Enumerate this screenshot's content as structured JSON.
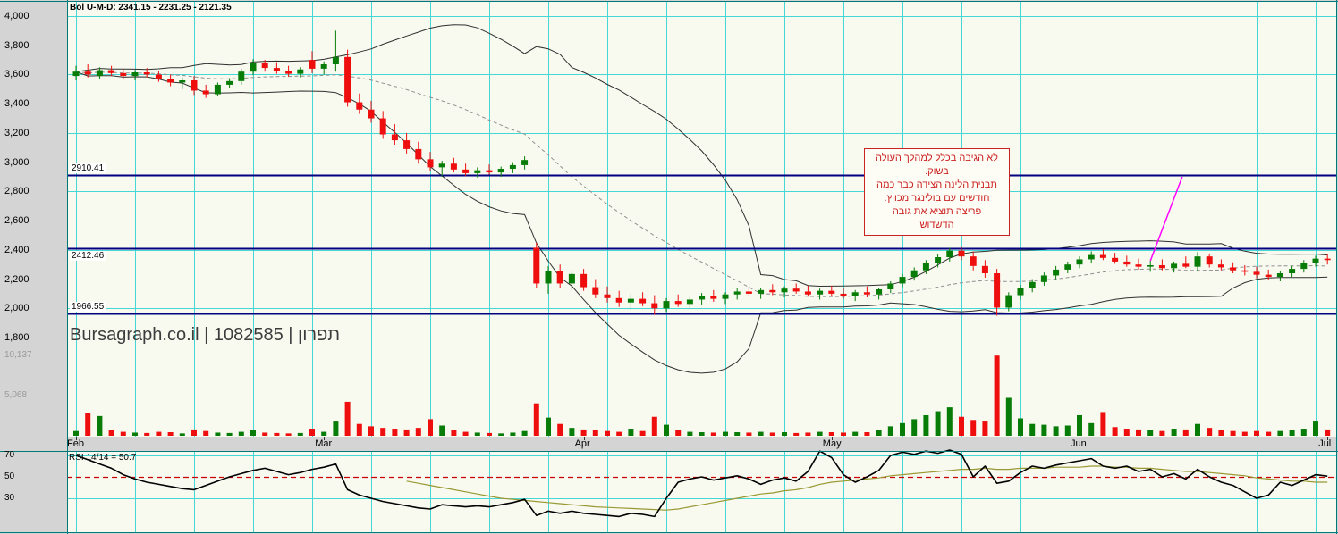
{
  "header": {
    "bol_label": "Bol U-M-D: 2341.15 - 2231.25 - 2121.35"
  },
  "watermark": "Bursagraph.co.il | 1082585 | תפרון",
  "rsi_label": "RSI 14/14 = 50.7",
  "annotation": {
    "lines": [
      "לא הגיבה בכלל למהלך העולה",
      "בשוק.",
      "תבנית הלינה הצידה כבר כמה",
      "חודשים עם בולינגר מכווץ.",
      "פריצה תוציא את גובה",
      "הדשדוש"
    ]
  },
  "colors": {
    "up": "#077d07",
    "down": "#ee0e0e",
    "grid": "#45d6d6",
    "level_line": "#000080",
    "band": "#303030",
    "band_mid": "#8f8f8f",
    "rsi_line": "#000000",
    "rsi_smooth": "#999933",
    "rsi_mid": "#cc0000",
    "trend": "#ff00ff",
    "frame": "#007878",
    "plot_bg": "#f8faf0",
    "gutter_bg": "#d4d4d4"
  },
  "y_axis_price": [
    {
      "label": "4,000",
      "value": 4000
    },
    {
      "label": "3,800",
      "value": 3800
    },
    {
      "label": "3,600",
      "value": 3600
    },
    {
      "label": "3,400",
      "value": 3400
    },
    {
      "label": "3,200",
      "value": 3200
    },
    {
      "label": "3,000",
      "value": 3000
    },
    {
      "label": "2,800",
      "value": 2800
    },
    {
      "label": "2,600",
      "value": 2600
    },
    {
      "label": "2,400",
      "value": 2400
    },
    {
      "label": "2,200",
      "value": 2200
    },
    {
      "label": "2,000",
      "value": 2000
    },
    {
      "label": "1,800",
      "value": 1800
    }
  ],
  "y_axis_volume": [
    {
      "label": "10,137",
      "value": 10137
    },
    {
      "label": "5,068",
      "value": 5068
    }
  ],
  "rsi_axis": [
    {
      "label": "70",
      "value": 70
    },
    {
      "label": "50",
      "value": 50
    },
    {
      "label": "30",
      "value": 30
    }
  ],
  "months": [
    {
      "label": "Feb",
      "index": 0
    },
    {
      "label": "Mar",
      "index": 21
    },
    {
      "label": "Apr",
      "index": 43
    },
    {
      "label": "May",
      "index": 64
    },
    {
      "label": "Jun",
      "index": 85
    },
    {
      "label": "Jul",
      "index": 106
    }
  ],
  "levels": [
    {
      "label": "2910.41",
      "value": 2910.41
    },
    {
      "label": "2412.46",
      "value": 2412.46
    },
    {
      "label": "1966.55",
      "value": 1966.55
    }
  ],
  "trend_line": {
    "from": {
      "index": 91,
      "price": 2325
    },
    "to": {
      "index": 93.7,
      "price": 2900
    }
  },
  "chart_data": {
    "type": "candlestick+volume+rsi",
    "title": "Bursagraph.co.il | 1082585 | תפרון",
    "x_months": [
      "Feb",
      "Mar",
      "Apr",
      "May",
      "Jun",
      "Jul"
    ],
    "price_range": [
      1800,
      4000
    ],
    "volume_axis_max": 10500,
    "bollinger": {
      "period": 20,
      "stdev": 2,
      "upper": 2341.15,
      "middle": 2231.25,
      "lower": 2121.35
    },
    "rsi": {
      "period": "14/14",
      "last": 50.7,
      "levels": [
        70,
        50,
        30
      ]
    },
    "support_resistance": [
      2910.41,
      2412.46,
      1966.55
    ],
    "candle_fields": [
      "open",
      "high",
      "low",
      "close",
      "volume"
    ],
    "candles": [
      [
        3590,
        3660,
        3560,
        3620,
        600
      ],
      [
        3620,
        3670,
        3580,
        3600,
        2900
      ],
      [
        3590,
        3650,
        3570,
        3630,
        2500
      ],
      [
        3630,
        3660,
        3590,
        3610,
        700
      ],
      [
        3610,
        3640,
        3570,
        3590,
        500
      ],
      [
        3590,
        3630,
        3560,
        3615,
        400
      ],
      [
        3615,
        3645,
        3580,
        3600,
        350
      ],
      [
        3600,
        3625,
        3550,
        3570,
        500
      ],
      [
        3570,
        3600,
        3520,
        3545,
        450
      ],
      [
        3545,
        3580,
        3500,
        3560,
        300
      ],
      [
        3560,
        3590,
        3460,
        3490,
        800
      ],
      [
        3490,
        3530,
        3440,
        3465,
        600
      ],
      [
        3465,
        3545,
        3450,
        3530,
        400
      ],
      [
        3530,
        3575,
        3505,
        3555,
        350
      ],
      [
        3555,
        3640,
        3530,
        3620,
        500
      ],
      [
        3620,
        3705,
        3595,
        3680,
        700
      ],
      [
        3680,
        3700,
        3620,
        3645,
        400
      ],
      [
        3645,
        3685,
        3605,
        3625,
        350
      ],
      [
        3625,
        3660,
        3585,
        3605,
        300
      ],
      [
        3605,
        3650,
        3580,
        3635,
        350
      ],
      [
        3700,
        3760,
        3610,
        3640,
        900
      ],
      [
        3640,
        3690,
        3600,
        3670,
        500
      ],
      [
        3670,
        3900,
        3620,
        3720,
        1800
      ],
      [
        3720,
        3770,
        3380,
        3410,
        4300
      ],
      [
        3410,
        3470,
        3330,
        3360,
        1500
      ],
      [
        3360,
        3420,
        3270,
        3300,
        1200
      ],
      [
        3300,
        3350,
        3160,
        3190,
        1000
      ],
      [
        3190,
        3260,
        3120,
        3150,
        900
      ],
      [
        3150,
        3200,
        3060,
        3090,
        800
      ],
      [
        3090,
        3140,
        2990,
        3020,
        1000
      ],
      [
        3020,
        3070,
        2940,
        2965,
        2100
      ],
      [
        2965,
        3010,
        2900,
        2990,
        1300
      ],
      [
        2990,
        3030,
        2930,
        2950,
        700
      ],
      [
        2950,
        2990,
        2905,
        2925,
        500
      ],
      [
        2925,
        2965,
        2895,
        2945,
        400
      ],
      [
        2945,
        2985,
        2915,
        2930,
        350
      ],
      [
        2930,
        2970,
        2900,
        2955,
        300
      ],
      [
        2955,
        3000,
        2925,
        2980,
        400
      ],
      [
        2980,
        3040,
        2950,
        3015,
        600
      ],
      [
        2415,
        2450,
        2140,
        2170,
        4100
      ],
      [
        2170,
        2290,
        2100,
        2255,
        2300
      ],
      [
        2255,
        2300,
        2140,
        2170,
        1500
      ],
      [
        2170,
        2260,
        2120,
        2235,
        1000
      ],
      [
        2235,
        2270,
        2120,
        2145,
        800
      ],
      [
        2145,
        2200,
        2070,
        2095,
        700
      ],
      [
        2095,
        2150,
        2040,
        2070,
        600
      ],
      [
        2070,
        2120,
        2010,
        2040,
        500
      ],
      [
        2040,
        2100,
        1990,
        2065,
        900
      ],
      [
        2065,
        2110,
        2015,
        2035,
        600
      ],
      [
        2035,
        2090,
        1955,
        2000,
        2400
      ],
      [
        2000,
        2070,
        1975,
        2050,
        1400
      ],
      [
        2050,
        2095,
        2010,
        2030,
        700
      ],
      [
        2030,
        2080,
        1995,
        2060,
        500
      ],
      [
        2060,
        2105,
        2025,
        2085,
        450
      ],
      [
        2085,
        2125,
        2045,
        2065,
        400
      ],
      [
        2065,
        2110,
        2030,
        2095,
        500
      ],
      [
        2095,
        2140,
        2060,
        2115,
        450
      ],
      [
        2115,
        2150,
        2080,
        2100,
        400
      ],
      [
        2100,
        2140,
        2065,
        2125,
        500
      ],
      [
        2125,
        2165,
        2090,
        2110,
        400
      ],
      [
        2110,
        2150,
        2075,
        2135,
        450
      ],
      [
        2135,
        2170,
        2100,
        2115,
        350
      ],
      [
        2115,
        2155,
        2080,
        2095,
        400
      ],
      [
        2095,
        2135,
        2060,
        2120,
        500
      ],
      [
        2120,
        2155,
        2085,
        2100,
        450
      ],
      [
        2100,
        2140,
        2065,
        2085,
        400
      ],
      [
        2085,
        2125,
        2050,
        2110,
        500
      ],
      [
        2110,
        2150,
        2075,
        2095,
        450
      ],
      [
        2095,
        2140,
        2060,
        2130,
        700
      ],
      [
        2130,
        2185,
        2105,
        2170,
        1200
      ],
      [
        2170,
        2235,
        2145,
        2215,
        1600
      ],
      [
        2215,
        2280,
        2190,
        2260,
        2100
      ],
      [
        2260,
        2330,
        2235,
        2310,
        2600
      ],
      [
        2310,
        2370,
        2280,
        2350,
        3100
      ],
      [
        2350,
        2415,
        2320,
        2395,
        3600
      ],
      [
        2395,
        2420,
        2330,
        2355,
        2400
      ],
      [
        2355,
        2390,
        2260,
        2290,
        2000
      ],
      [
        2290,
        2330,
        2210,
        2240,
        1800
      ],
      [
        2240,
        2270,
        1950,
        2005,
        10137
      ],
      [
        2005,
        2110,
        1980,
        2090,
        4800
      ],
      [
        2090,
        2160,
        2060,
        2140,
        2200
      ],
      [
        2140,
        2200,
        2110,
        2180,
        1500
      ],
      [
        2180,
        2245,
        2155,
        2225,
        1400
      ],
      [
        2225,
        2290,
        2200,
        2265,
        1200
      ],
      [
        2265,
        2320,
        2240,
        2300,
        1300
      ],
      [
        2300,
        2355,
        2275,
        2335,
        2600
      ],
      [
        2335,
        2390,
        2310,
        2365,
        1600
      ],
      [
        2365,
        2405,
        2330,
        2345,
        3000
      ],
      [
        2345,
        2380,
        2305,
        2320,
        1100
      ],
      [
        2320,
        2360,
        2285,
        2300,
        900
      ],
      [
        2300,
        2340,
        2265,
        2285,
        800
      ],
      [
        2285,
        2325,
        2250,
        2295,
        700
      ],
      [
        2295,
        2335,
        2260,
        2275,
        600
      ],
      [
        2275,
        2320,
        2245,
        2305,
        900
      ],
      [
        2305,
        2355,
        2275,
        2285,
        800
      ],
      [
        2285,
        2385,
        2255,
        2355,
        1500
      ],
      [
        2355,
        2375,
        2280,
        2300,
        1000
      ],
      [
        2300,
        2335,
        2260,
        2280,
        700
      ],
      [
        2280,
        2315,
        2240,
        2260,
        600
      ],
      [
        2260,
        2295,
        2225,
        2250,
        500
      ],
      [
        2250,
        2285,
        2205,
        2230,
        600
      ],
      [
        2230,
        2265,
        2195,
        2215,
        500
      ],
      [
        2215,
        2255,
        2185,
        2240,
        600
      ],
      [
        2240,
        2290,
        2215,
        2270,
        700
      ],
      [
        2270,
        2330,
        2245,
        2310,
        900
      ],
      [
        2310,
        2360,
        2285,
        2340,
        1800
      ],
      [
        2340,
        2370,
        2300,
        2330,
        800
      ]
    ],
    "rsi_series": [
      70,
      66,
      62,
      58,
      52,
      48,
      45,
      43,
      41,
      39,
      38,
      42,
      46,
      50,
      53,
      56,
      58,
      55,
      52,
      54,
      57,
      59,
      62,
      38,
      33,
      30,
      27,
      25,
      23,
      21,
      20,
      24,
      23,
      22,
      23,
      22,
      24,
      26,
      29,
      14,
      18,
      16,
      18,
      16,
      15,
      14,
      13,
      16,
      15,
      13,
      30,
      45,
      48,
      50,
      47,
      49,
      51,
      48,
      43,
      47,
      49,
      46,
      55,
      74,
      68,
      52,
      45,
      50,
      56,
      70,
      73,
      71,
      74,
      72,
      75,
      71,
      50,
      60,
      44,
      46,
      54,
      60,
      58,
      61,
      63,
      65,
      67,
      60,
      58,
      60,
      55,
      57,
      50,
      53,
      48,
      57,
      50,
      45,
      42,
      36,
      30,
      33,
      45,
      42,
      47,
      52,
      50.7
    ],
    "rsi_smooth_series": [
      null,
      null,
      null,
      null,
      null,
      null,
      null,
      null,
      null,
      null,
      null,
      null,
      null,
      null,
      null,
      null,
      null,
      null,
      null,
      null,
      null,
      null,
      null,
      null,
      null,
      null,
      null,
      null,
      46,
      44,
      42,
      40,
      38,
      36,
      34,
      32,
      30,
      29,
      28,
      27,
      26,
      25,
      24,
      23,
      22,
      21.5,
      21,
      20.5,
      20,
      19.5,
      19,
      20,
      22,
      24,
      26,
      28,
      30,
      32,
      34,
      35,
      37,
      38,
      40,
      43,
      45,
      46,
      47,
      48,
      49,
      51,
      52,
      53,
      54,
      55,
      56,
      57,
      57,
      58,
      57,
      57,
      58,
      58,
      58,
      59,
      59,
      59,
      60,
      60,
      59,
      59,
      58,
      58,
      57,
      56,
      55,
      55,
      54,
      53,
      52,
      51,
      49,
      48,
      47,
      46,
      46,
      45,
      45
    ]
  }
}
